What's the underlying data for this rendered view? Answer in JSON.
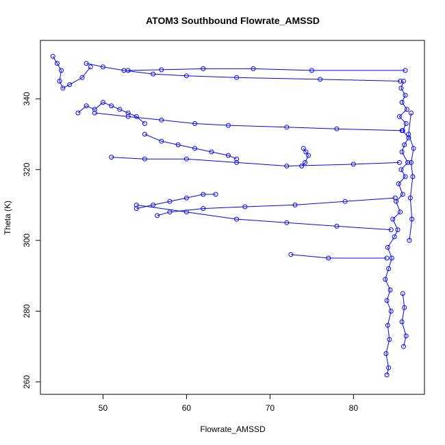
{
  "chart_data": {
    "type": "scatter",
    "title": "ATOM3 Southbound Flowrate_AMSSD",
    "xlabel": "Flowrate_AMSSD",
    "ylabel": "Theta (K)",
    "xlim": [
      42.5,
      88.5
    ],
    "ylim": [
      256.5,
      356.5
    ],
    "x_ticks": [
      50,
      60,
      70,
      80
    ],
    "y_ticks": [
      260,
      280,
      300,
      320,
      340
    ],
    "grid": false,
    "legend": "none",
    "marker": "open-circle",
    "connected": true,
    "color": "#0000ff",
    "series": [
      {
        "x": [
          84.0,
          84.2,
          83.9,
          84.3,
          84.1,
          84.5,
          84.0,
          84.4,
          83.8,
          84.2,
          84.6,
          84.1,
          84.9,
          85.3,
          84.7,
          85.6,
          85.1,
          85.9,
          85.4,
          86.2,
          85.7,
          86.5,
          85.8,
          86.1,
          86.6,
          85.9,
          86.3,
          85.5,
          86.4,
          85.8,
          86.2,
          85.7,
          86.0
        ],
        "y": [
          262,
          264,
          268,
          272,
          276,
          280,
          283,
          286,
          289,
          292,
          295,
          298,
          301,
          303,
          306,
          308,
          311,
          313,
          316,
          318,
          320,
          322,
          325,
          327,
          329,
          331,
          333,
          335,
          337,
          339,
          341,
          343,
          345
        ]
      },
      {
        "x": [
          85.6,
          76.0,
          66.0,
          60.0,
          56.0,
          52.5,
          50.0,
          48.0
        ],
        "y": [
          345,
          345.5,
          346,
          346.5,
          347,
          348,
          349,
          350
        ]
      },
      {
        "x": [
          86.2,
          75.0,
          68.0,
          62.0,
          57.0,
          53.0
        ],
        "y": [
          348,
          348,
          348.5,
          348.5,
          348.2,
          348
        ]
      },
      {
        "x": [
          85.8,
          78.0,
          72.0,
          65.0,
          61.0,
          57.0,
          53.0,
          49.0
        ],
        "y": [
          331,
          331.5,
          332,
          332.5,
          333,
          334,
          335,
          336
        ]
      },
      {
        "x": [
          85.5,
          80.0,
          72.0,
          66.0,
          60.0,
          55.0,
          51.0
        ],
        "y": [
          322,
          321.5,
          321,
          322,
          323,
          323,
          323.5
        ]
      },
      {
        "x": [
          85.0,
          79.0,
          73.0,
          67.0,
          62.0,
          58.0,
          56.5
        ],
        "y": [
          312,
          311,
          310,
          309.5,
          309,
          308,
          307
        ]
      },
      {
        "x": [
          84.5,
          78.0,
          72.0,
          66.0,
          60.0,
          54.0
        ],
        "y": [
          303,
          304,
          305,
          306,
          308,
          310
        ]
      },
      {
        "x": [
          84.0,
          77.0,
          72.5
        ],
        "y": [
          295,
          295,
          296
        ]
      },
      {
        "x": [
          44.0,
          44.5,
          45.0,
          44.8,
          45.2,
          46.0,
          47.5,
          48.5
        ],
        "y": [
          352,
          350,
          348,
          345,
          343,
          344,
          346,
          349
        ]
      },
      {
        "x": [
          47.0,
          48.0,
          49.0,
          50.0,
          51.0,
          52.0,
          53.0,
          54.0,
          55.0
        ],
        "y": [
          336,
          338,
          337,
          339,
          338,
          337,
          336,
          335,
          333
        ]
      },
      {
        "x": [
          55.0,
          57.0,
          59.0,
          61.0,
          63.0,
          65.0,
          66.0
        ],
        "y": [
          330,
          328,
          327,
          326,
          325,
          324,
          323
        ]
      },
      {
        "x": [
          54.0,
          56.0,
          58.0,
          60.0,
          62.0,
          63.5
        ],
        "y": [
          309,
          310,
          311,
          312,
          313,
          313
        ]
      },
      {
        "x": [
          74.0,
          74.3,
          74.6,
          74.2,
          73.8
        ],
        "y": [
          326,
          325,
          324,
          322,
          321
        ]
      },
      {
        "x": [
          86.7,
          87.0,
          86.8,
          87.1,
          86.9,
          87.2,
          86.6,
          86.9
        ],
        "y": [
          300,
          306,
          312,
          318,
          322,
          326,
          330,
          336
        ]
      },
      {
        "x": [
          85.9,
          86.1,
          85.8,
          86.3,
          86.0
        ],
        "y": [
          285,
          281,
          277,
          273,
          270
        ]
      }
    ]
  }
}
